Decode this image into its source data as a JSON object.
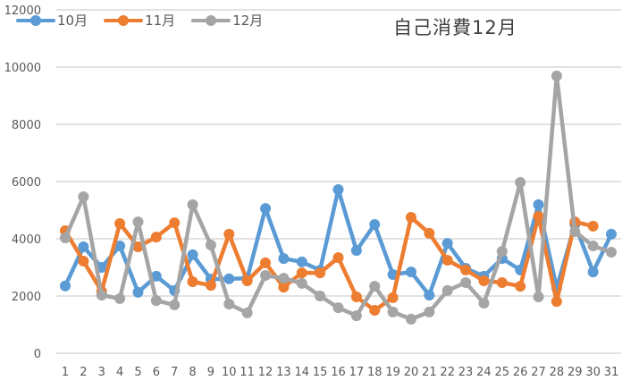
{
  "chart_data": {
    "type": "line",
    "title": "自己消費12月",
    "xlabel": "",
    "ylabel": "",
    "ylim": [
      0,
      12000
    ],
    "yticks": [
      0,
      2000,
      4000,
      6000,
      8000,
      10000,
      12000
    ],
    "grid": true,
    "legend_position": "top-left",
    "categories": [
      "1",
      "2",
      "3",
      "4",
      "5",
      "6",
      "7",
      "8",
      "9",
      "10",
      "11",
      "12",
      "13",
      "14",
      "15",
      "16",
      "17",
      "18",
      "19",
      "20",
      "21",
      "22",
      "23",
      "24",
      "25",
      "26",
      "27",
      "28",
      "29",
      "30",
      "31"
    ],
    "series": [
      {
        "name": "10月",
        "color": "#5B9BD5",
        "values": [
          2350,
          3720,
          3000,
          3750,
          2130,
          2690,
          2190,
          3440,
          2590,
          2600,
          2620,
          5060,
          3310,
          3190,
          2900,
          5720,
          3590,
          4500,
          2750,
          2840,
          2030,
          3840,
          2970,
          2690,
          3310,
          2910,
          5190,
          2280,
          4500,
          2840,
          4160
        ]
      },
      {
        "name": "11月",
        "color": "#ED7D31",
        "values": [
          4280,
          3220,
          2160,
          4530,
          3720,
          4060,
          4560,
          2500,
          2370,
          4160,
          2530,
          3160,
          2310,
          2810,
          2810,
          3340,
          1970,
          1500,
          1940,
          4750,
          4190,
          3250,
          2910,
          2530,
          2470,
          2340,
          4780,
          1810,
          4590,
          4440,
          null
        ]
      },
      {
        "name": "12月",
        "color": "#A5A5A5",
        "values": [
          4030,
          5470,
          2030,
          1910,
          4590,
          1840,
          1690,
          5190,
          3780,
          1720,
          1410,
          2720,
          2620,
          2440,
          2000,
          1590,
          1310,
          2340,
          1440,
          1190,
          1440,
          2190,
          2470,
          1750,
          3560,
          5970,
          1970,
          9690,
          4250,
          3750,
          3530
        ]
      }
    ]
  },
  "legend": {
    "items": [
      {
        "label": "10月",
        "color": "#5B9BD5"
      },
      {
        "label": "11月",
        "color": "#ED7D31"
      },
      {
        "label": "12月",
        "color": "#A5A5A5"
      }
    ]
  },
  "style": {
    "grid_color": "#D9D9D9",
    "axis_text_color": "#595959"
  }
}
